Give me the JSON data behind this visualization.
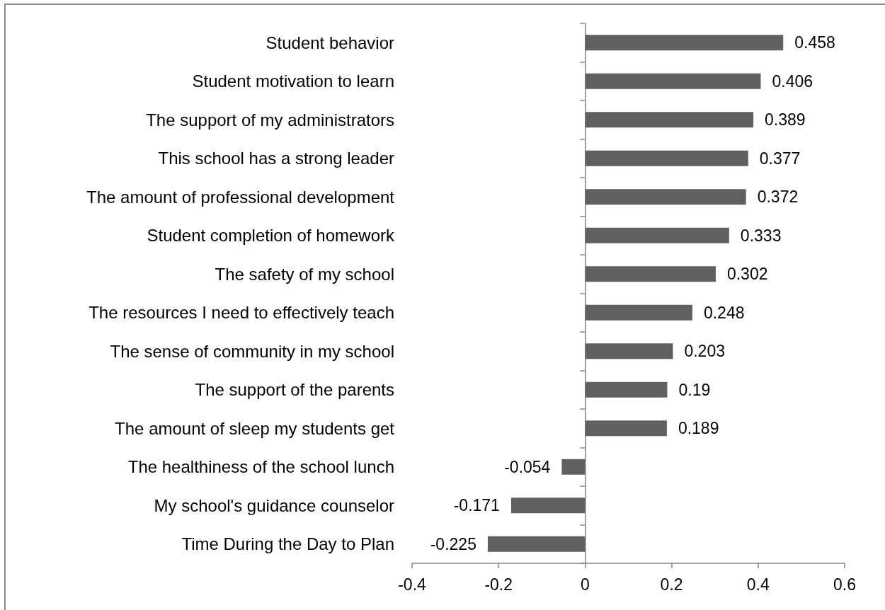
{
  "chart_data": {
    "type": "bar",
    "orientation": "horizontal",
    "categories": [
      "Student behavior",
      "Student motivation to learn",
      "The support of my administrators",
      "This school has a strong leader",
      "The amount of professional development",
      "Student completion of homework",
      "The safety of my school",
      "The resources I need to effectively teach",
      "The sense of community in my school",
      "The support of the parents",
      "The amount of sleep my students get",
      "The healthiness of the school lunch",
      "My school's guidance counselor",
      "Time During the Day to Plan"
    ],
    "values": [
      0.458,
      0.406,
      0.389,
      0.377,
      0.372,
      0.333,
      0.302,
      0.248,
      0.203,
      0.19,
      0.189,
      -0.054,
      -0.171,
      -0.225
    ],
    "color": "#606060",
    "xlim": [
      -0.4,
      0.6
    ],
    "xticks": [
      -0.4,
      -0.2,
      0,
      0.2,
      0.4,
      0.6
    ],
    "data_labels": true
  }
}
